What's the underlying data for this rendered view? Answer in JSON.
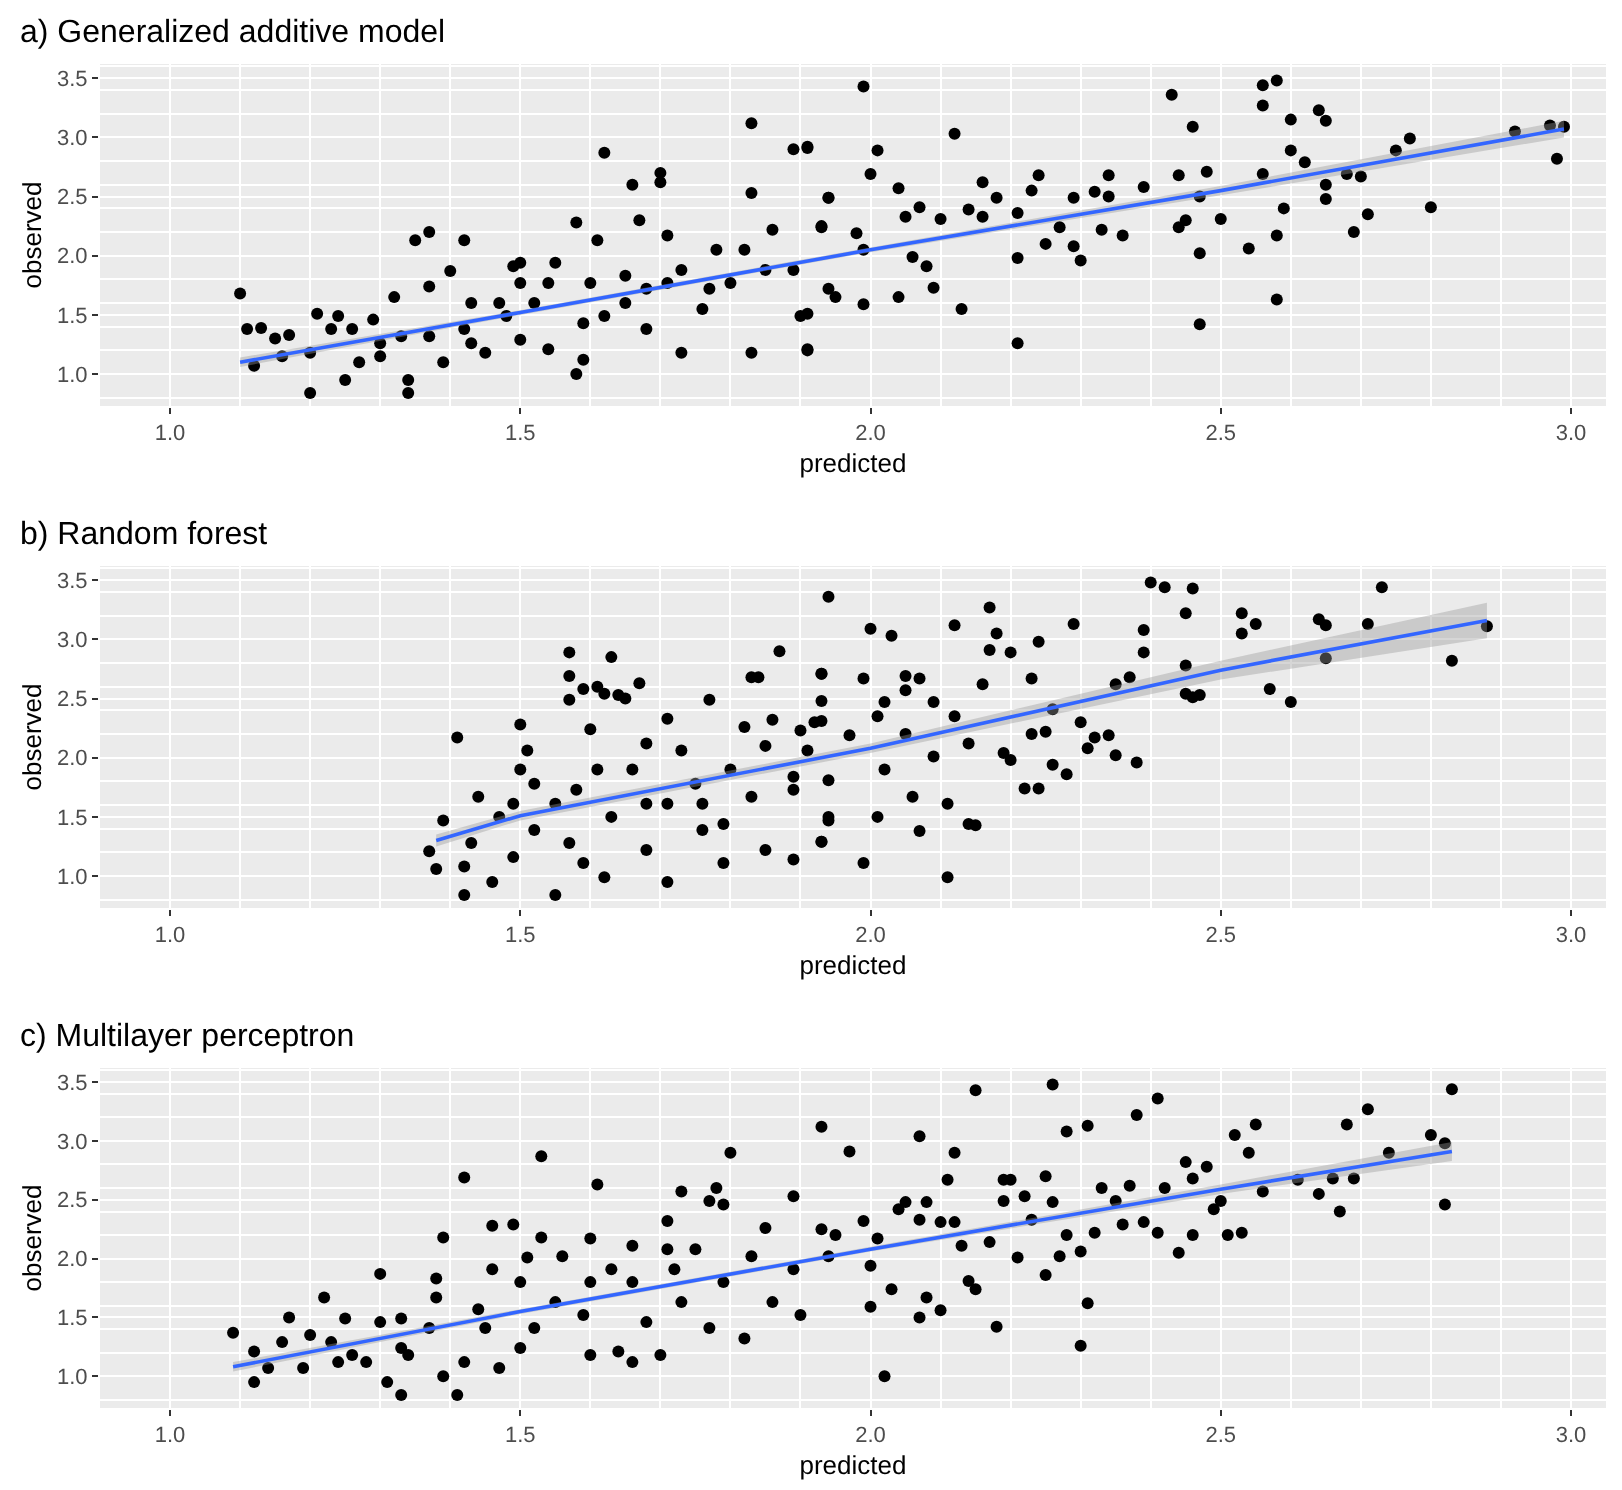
{
  "chart_data": [
    {
      "type": "scatter",
      "title": "a) Generalized additive model",
      "xlabel": "predicted",
      "ylabel": "observed",
      "xlim": [
        0.9,
        3.05
      ],
      "ylim": [
        0.73,
        3.62
      ],
      "xticks": [
        {
          "value": 1,
          "label": "1.0"
        },
        {
          "value": 1.5,
          "label": "1.5"
        },
        {
          "value": 2,
          "label": "2.0"
        },
        {
          "value": 2.5,
          "label": "2.5"
        },
        {
          "value": 3,
          "label": "3.0"
        }
      ],
      "yticks": [
        {
          "value": 1,
          "label": "1.0"
        },
        {
          "value": 1.5,
          "label": "1.5"
        },
        {
          "value": 2,
          "label": "2.0"
        },
        {
          "value": 2.5,
          "label": "2.5"
        },
        {
          "value": 3,
          "label": "3.0"
        },
        {
          "value": 3.5,
          "label": "3.5"
        }
      ],
      "grid": true,
      "series": [
        {
          "marker": "circle",
          "color": "#000000",
          "x": [
            1.1,
            1.11,
            1.12,
            1.13,
            1.15,
            1.17,
            1.2,
            1.2,
            1.21,
            1.23,
            1.24,
            1.25,
            1.27,
            1.29,
            1.3,
            1.32,
            1.34,
            1.34,
            1.35,
            1.37,
            1.37,
            1.39,
            1.4,
            1.42,
            1.42,
            1.43,
            1.45,
            1.47,
            1.49,
            1.5,
            1.5,
            1.52,
            1.54,
            1.55,
            1.58,
            1.58,
            1.59,
            1.61,
            1.62,
            1.62,
            1.65,
            1.66,
            1.67,
            1.68,
            1.7,
            1.7,
            1.71,
            1.73,
            1.73,
            1.76,
            1.78,
            1.8,
            1.83,
            1.83,
            1.83,
            1.85,
            1.86,
            1.89,
            1.91,
            1.91,
            1.9,
            1.93,
            1.94,
            1.33,
            1.26,
            1.3,
            1.43,
            1.48,
            1.54,
            1.6,
            1.59,
            1.65,
            1.71,
            1.77,
            1.82,
            1.89,
            1.94,
            1.16,
            1.37,
            1.5,
            1.68,
            1.99,
            1.91,
            2.01,
            2.0,
            2.12,
            2.04,
            1.94,
            1.93,
            1.98,
            1.99,
            2.05,
            2.07,
            2.1,
            2.06,
            2.08,
            2.09,
            2.04,
            1.99,
            1.95,
            1.91,
            1.91,
            2.13,
            2.21,
            2.16,
            2.14,
            2.18,
            2.16,
            2.21,
            2.23,
            2.24,
            2.21,
            2.25,
            2.27,
            2.29,
            2.32,
            2.29,
            2.3,
            2.34,
            2.34,
            2.33,
            2.36,
            2.39,
            2.43,
            2.44,
            2.44,
            2.46,
            2.47,
            2.47,
            2.47,
            2.48,
            2.5,
            2.45,
            2.54,
            2.56,
            2.58,
            2.56,
            2.56,
            2.58,
            2.58,
            2.59,
            2.6,
            2.6,
            2.62,
            2.64,
            2.65,
            2.65,
            2.65,
            2.68,
            2.7,
            2.69,
            2.71,
            2.75,
            2.77,
            2.8,
            2.92,
            2.97,
            2.99,
            2.98
          ],
          "values": [
            1.68,
            1.38,
            1.07,
            1.39,
            1.3,
            1.33,
            0.84,
            1.18,
            1.51,
            1.38,
            1.49,
            0.95,
            1.1,
            1.46,
            1.15,
            1.65,
            0.95,
            0.84,
            2.13,
            2.2,
            1.74,
            1.1,
            1.87,
            2.13,
            1.38,
            1.26,
            1.18,
            1.6,
            1.91,
            1.94,
            1.29,
            1.6,
            1.21,
            1.94,
            2.28,
            1.0,
            1.12,
            2.13,
            2.87,
            1.49,
            1.6,
            2.6,
            2.3,
            1.38,
            2.7,
            2.62,
            2.17,
            1.18,
            1.88,
            1.55,
            2.05,
            1.77,
            3.12,
            2.53,
            1.18,
            1.88,
            2.22,
            2.9,
            2.91,
            1.21,
            1.49,
            2.25,
            2.49,
            1.32,
            1.38,
            1.26,
            1.6,
            1.49,
            1.77,
            1.77,
            1.43,
            1.83,
            1.77,
            1.72,
            2.05,
            1.88,
            1.72,
            1.15,
            1.32,
            1.77,
            1.72,
            3.43,
            2.92,
            2.89,
            2.69,
            3.03,
            2.57,
            2.49,
            2.24,
            2.19,
            2.05,
            2.33,
            2.41,
            2.31,
            1.99,
            1.91,
            1.73,
            1.65,
            1.59,
            1.65,
            1.51,
            1.2,
            1.55,
            1.26,
            2.62,
            2.39,
            2.49,
            2.33,
            2.36,
            2.55,
            2.68,
            1.98,
            2.1,
            2.24,
            2.49,
            2.54,
            2.08,
            1.96,
            2.68,
            2.5,
            2.22,
            2.17,
            2.58,
            3.36,
            2.68,
            2.24,
            3.09,
            2.5,
            2.02,
            1.42,
            2.71,
            2.31,
            2.3,
            2.06,
            3.44,
            3.48,
            3.27,
            2.69,
            1.63,
            2.17,
            2.4,
            3.15,
            2.89,
            2.79,
            3.23,
            3.14,
            2.6,
            2.48,
            2.69,
            2.67,
            2.2,
            2.35,
            2.89,
            2.99,
            2.41,
            3.05,
            3.1,
            3.09,
            2.82
          ]
        },
        {
          "type": "line",
          "color": "#3366ff",
          "x": [
            1.1,
            1.5,
            2.0,
            2.5,
            2.99
          ],
          "values": [
            1.1,
            1.52,
            2.05,
            2.55,
            3.07
          ],
          "lower": [
            1.06,
            1.5,
            2.03,
            2.51,
            3.0
          ],
          "upper": [
            1.14,
            1.54,
            2.07,
            2.59,
            3.14
          ]
        }
      ]
    },
    {
      "type": "scatter",
      "title": "b) Random forest",
      "xlabel": "predicted",
      "ylabel": "observed",
      "xlim": [
        0.9,
        3.05
      ],
      "ylim": [
        0.73,
        3.62
      ],
      "xticks": [
        {
          "value": 1,
          "label": "1.0"
        },
        {
          "value": 1.5,
          "label": "1.5"
        },
        {
          "value": 2,
          "label": "2.0"
        },
        {
          "value": 2.5,
          "label": "2.5"
        },
        {
          "value": 3,
          "label": "3.0"
        }
      ],
      "yticks": [
        {
          "value": 1,
          "label": "1.0"
        },
        {
          "value": 1.5,
          "label": "1.5"
        },
        {
          "value": 2,
          "label": "2.0"
        },
        {
          "value": 2.5,
          "label": "2.5"
        },
        {
          "value": 3,
          "label": "3.0"
        },
        {
          "value": 3.5,
          "label": "3.5"
        }
      ],
      "grid": true,
      "series": [
        {
          "marker": "circle",
          "color": "#000000",
          "x": [
            1.37,
            1.39,
            1.38,
            1.41,
            1.42,
            1.42,
            1.44,
            1.46,
            1.47,
            1.5,
            1.5,
            1.49,
            1.51,
            1.52,
            1.55,
            1.55,
            1.57,
            1.57,
            1.57,
            1.57,
            1.59,
            1.61,
            1.63,
            1.62,
            1.64,
            1.65,
            1.6,
            1.61,
            1.58,
            1.59,
            1.62,
            1.67,
            1.63,
            1.66,
            1.68,
            1.68,
            1.71,
            1.71,
            1.73,
            1.75,
            1.76,
            1.77,
            1.79,
            1.79,
            1.8,
            1.82,
            1.83,
            1.84,
            1.83,
            1.85,
            1.85,
            1.86,
            1.87,
            1.89,
            1.89,
            1.9,
            1.92,
            1.93,
            1.93,
            1.94,
            1.94,
            1.68,
            1.52,
            1.43,
            1.49,
            1.71,
            1.76,
            1.89,
            2.0,
            2.03,
            1.99,
            1.93,
            1.93,
            1.93,
            1.91,
            1.94,
            1.93,
            1.94,
            1.99,
            1.97,
            2.01,
            2.02,
            2.05,
            2.05,
            2.07,
            2.09,
            2.05,
            2.02,
            2.01,
            2.06,
            2.07,
            2.09,
            2.11,
            2.11,
            2.12,
            2.12,
            2.14,
            2.14,
            2.15,
            2.16,
            2.17,
            2.17,
            2.18,
            2.2,
            2.19,
            2.2,
            2.22,
            2.23,
            2.23,
            2.24,
            2.24,
            2.25,
            2.26,
            2.26,
            2.28,
            2.29,
            2.3,
            2.31,
            2.32,
            2.34,
            2.35,
            2.35,
            2.37,
            2.38,
            2.39,
            2.39,
            2.4,
            2.42,
            2.45,
            2.46,
            2.45,
            2.45,
            2.46,
            2.47,
            2.53,
            2.53,
            2.55,
            2.57,
            2.6,
            2.64,
            2.65,
            2.65,
            2.71,
            2.73,
            2.83,
            2.88
          ],
          "values": [
            1.21,
            1.47,
            1.06,
            2.17,
            0.84,
            1.08,
            1.67,
            0.95,
            1.5,
            2.28,
            1.9,
            1.16,
            2.06,
            1.39,
            0.84,
            1.61,
            2.89,
            2.69,
            2.49,
            1.28,
            2.58,
            2.6,
            2.85,
            2.54,
            2.53,
            2.5,
            2.24,
            1.9,
            1.73,
            1.11,
            0.99,
            2.63,
            1.5,
            1.9,
            2.12,
            1.22,
            2.33,
            0.95,
            2.06,
            1.78,
            1.39,
            2.49,
            1.11,
            1.44,
            1.9,
            2.26,
            2.68,
            2.68,
            1.67,
            2.1,
            1.22,
            2.32,
            2.9,
            1.14,
            1.84,
            2.23,
            2.3,
            2.71,
            1.29,
            1.5,
            3.36,
            1.61,
            1.78,
            1.28,
            1.61,
            1.61,
            1.61,
            1.73,
            3.09,
            3.03,
            2.67,
            2.71,
            2.48,
            2.31,
            2.06,
            1.81,
            1.29,
            1.47,
            1.11,
            2.19,
            2.35,
            2.47,
            2.69,
            2.57,
            2.67,
            2.47,
            2.2,
            1.9,
            1.5,
            1.67,
            1.38,
            2.01,
            0.99,
            1.61,
            3.12,
            2.35,
            2.12,
            1.44,
            1.43,
            2.62,
            2.91,
            3.27,
            3.05,
            2.89,
            2.04,
            1.98,
            1.74,
            2.2,
            2.67,
            2.98,
            1.74,
            2.22,
            1.94,
            2.41,
            1.86,
            3.13,
            2.3,
            2.08,
            2.17,
            2.19,
            2.02,
            2.62,
            2.68,
            1.96,
            2.89,
            3.08,
            3.48,
            3.44,
            3.22,
            3.43,
            2.78,
            2.54,
            2.51,
            2.53,
            3.22,
            3.05,
            3.13,
            2.58,
            2.47,
            3.17,
            3.12,
            2.84,
            3.13,
            3.44,
            2.82,
            3.11
          ]
        },
        {
          "type": "line",
          "color": "#3366ff",
          "x": [
            1.38,
            1.5,
            2.0,
            2.5,
            2.88
          ],
          "values": [
            1.3,
            1.51,
            2.08,
            2.74,
            3.16
          ],
          "lower": [
            1.25,
            1.47,
            2.04,
            2.66,
            3.01
          ],
          "upper": [
            1.35,
            1.55,
            2.12,
            2.82,
            3.31
          ]
        }
      ]
    },
    {
      "type": "scatter",
      "title": "c) Multilayer perceptron",
      "xlabel": "predicted",
      "ylabel": "observed",
      "xlim": [
        0.9,
        3.05
      ],
      "ylim": [
        0.73,
        3.62
      ],
      "xticks": [
        {
          "value": 1,
          "label": "1.0"
        },
        {
          "value": 1.5,
          "label": "1.5"
        },
        {
          "value": 2,
          "label": "2.0"
        },
        {
          "value": 2.5,
          "label": "2.5"
        },
        {
          "value": 3,
          "label": "3.0"
        }
      ],
      "yticks": [
        {
          "value": 1,
          "label": "1.0"
        },
        {
          "value": 1.5,
          "label": "1.5"
        },
        {
          "value": 2,
          "label": "2.0"
        },
        {
          "value": 2.5,
          "label": "2.5"
        },
        {
          "value": 3,
          "label": "3.0"
        },
        {
          "value": 3.5,
          "label": "3.5"
        }
      ],
      "grid": true,
      "series": [
        {
          "marker": "circle",
          "color": "#000000",
          "x": [
            1.09,
            1.12,
            1.12,
            1.14,
            1.17,
            1.16,
            1.19,
            1.2,
            1.22,
            1.23,
            1.25,
            1.24,
            1.28,
            1.3,
            1.3,
            1.31,
            1.33,
            1.33,
            1.34,
            1.37,
            1.38,
            1.39,
            1.39,
            1.38,
            1.41,
            1.42,
            1.42,
            1.44,
            1.46,
            1.46,
            1.47,
            1.49,
            1.5,
            1.5,
            1.51,
            1.53,
            1.53,
            1.52,
            1.55,
            1.56,
            1.59,
            1.6,
            1.6,
            1.61,
            1.63,
            1.64,
            1.66,
            1.66,
            1.68,
            1.7,
            1.71,
            1.73,
            1.72,
            1.73,
            1.75,
            1.77,
            1.77,
            1.78,
            1.79,
            1.8,
            1.79,
            1.82,
            1.83,
            1.85,
            1.86,
            1.89,
            1.89,
            1.9,
            1.93,
            1.93,
            1.94,
            1.6,
            1.66,
            1.71,
            1.45,
            1.33,
            1.26,
            1.95,
            1.97,
            1.99,
            2.0,
            2.0,
            2.02,
            2.01,
            2.03,
            2.04,
            2.05,
            2.07,
            2.07,
            2.07,
            2.08,
            2.08,
            2.1,
            2.1,
            2.11,
            2.12,
            2.12,
            2.13,
            2.14,
            2.15,
            2.15,
            2.17,
            2.18,
            2.19,
            2.19,
            2.2,
            2.21,
            2.22,
            2.23,
            2.25,
            2.25,
            2.26,
            2.26,
            2.27,
            2.28,
            2.28,
            2.3,
            2.3,
            2.31,
            2.31,
            2.32,
            2.33,
            2.35,
            2.36,
            2.37,
            2.38,
            2.39,
            2.41,
            2.41,
            2.42,
            2.44,
            2.45,
            2.46,
            2.46,
            2.48,
            2.49,
            2.5,
            2.51,
            2.52,
            2.53,
            2.54,
            2.55,
            2.56,
            2.61,
            2.64,
            2.67,
            2.66,
            2.68,
            2.69,
            2.71,
            2.74,
            2.8,
            2.82,
            2.82,
            2.83
          ],
          "values": [
            1.37,
            1.21,
            0.95,
            1.07,
            1.5,
            1.29,
            1.07,
            1.35,
            1.67,
            1.29,
            1.49,
            1.12,
            1.12,
            1.87,
            1.46,
            0.95,
            0.84,
            1.49,
            1.18,
            1.41,
            1.83,
            1.0,
            2.18,
            1.67,
            0.84,
            2.69,
            1.12,
            1.57,
            2.28,
            1.91,
            1.07,
            2.29,
            1.8,
            1.24,
            2.01,
            2.87,
            2.18,
            1.41,
            1.63,
            2.02,
            1.52,
            1.18,
            2.17,
            2.63,
            1.91,
            1.21,
            1.12,
            2.11,
            1.46,
            1.18,
            2.32,
            2.57,
            1.91,
            1.63,
            2.08,
            1.41,
            2.49,
            2.6,
            2.46,
            2.9,
            1.8,
            1.32,
            2.02,
            2.26,
            1.63,
            2.53,
            1.91,
            1.52,
            3.12,
            2.25,
            2.02,
            1.8,
            1.8,
            2.08,
            1.41,
            1.24,
            1.18,
            2.2,
            2.91,
            2.32,
            1.94,
            1.59,
            1.0,
            2.17,
            1.74,
            2.42,
            2.48,
            1.5,
            3.04,
            2.33,
            2.48,
            1.67,
            2.31,
            1.56,
            2.67,
            2.9,
            2.31,
            2.11,
            1.81,
            1.74,
            3.43,
            2.14,
            1.42,
            2.49,
            2.67,
            2.67,
            2.01,
            2.53,
            2.33,
            2.7,
            1.86,
            3.48,
            2.48,
            2.02,
            3.08,
            2.2,
            2.06,
            1.26,
            3.13,
            1.62,
            2.22,
            2.6,
            2.49,
            2.29,
            2.62,
            3.22,
            2.31,
            3.36,
            2.22,
            2.6,
            2.05,
            2.82,
            2.2,
            2.68,
            2.78,
            2.42,
            2.49,
            2.2,
            3.05,
            2.22,
            2.9,
            3.14,
            2.57,
            2.67,
            2.55,
            2.4,
            2.68,
            3.14,
            2.68,
            3.27,
            2.9,
            3.05,
            2.98,
            2.46,
            3.44
          ]
        },
        {
          "type": "line",
          "color": "#3366ff",
          "x": [
            1.09,
            1.5,
            2.0,
            2.5,
            2.83
          ],
          "values": [
            1.08,
            1.55,
            2.08,
            2.59,
            2.91
          ],
          "lower": [
            1.04,
            1.53,
            2.06,
            2.55,
            2.83
          ],
          "upper": [
            1.12,
            1.57,
            2.1,
            2.63,
            2.99
          ]
        }
      ]
    }
  ]
}
